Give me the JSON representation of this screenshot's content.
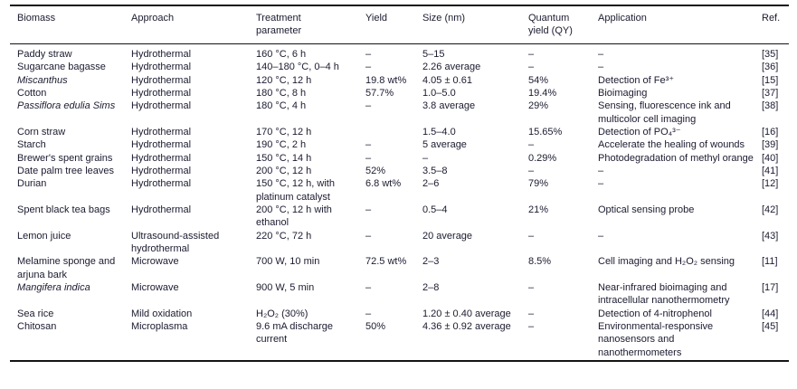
{
  "table": {
    "columns": [
      {
        "key": "biomass",
        "label": "Biomass"
      },
      {
        "key": "approach",
        "label": "Approach"
      },
      {
        "key": "treatment",
        "label": "Treatment\nparameter"
      },
      {
        "key": "yield",
        "label": "Yield"
      },
      {
        "key": "size",
        "label": "Size (nm)"
      },
      {
        "key": "qy",
        "label": "Quantum\nyield (QY)"
      },
      {
        "key": "application",
        "label": "Application"
      },
      {
        "key": "ref",
        "label": "Ref."
      }
    ],
    "rows": [
      {
        "biomass": "Paddy straw",
        "biomass_italic": false,
        "approach": "Hydrothermal",
        "treatment": "160 °C, 6 h",
        "yield": "–",
        "size": "5–15",
        "qy": "–",
        "application": "–",
        "ref": "[35]"
      },
      {
        "biomass": "Sugarcane bagasse",
        "biomass_italic": false,
        "approach": "Hydrothermal",
        "treatment": "140–180 °C, 0–4 h",
        "yield": "–",
        "size": "2.26 average",
        "qy": "–",
        "application": "–",
        "ref": "[36]"
      },
      {
        "biomass": "Miscanthus",
        "biomass_italic": true,
        "approach": "Hydrothermal",
        "treatment": "120 °C, 12 h",
        "yield": "19.8 wt%",
        "size": "4.05 ± 0.61",
        "qy": "54%",
        "application": "Detection of Fe³⁺",
        "ref": "[15]"
      },
      {
        "biomass": "Cotton",
        "biomass_italic": false,
        "approach": "Hydrothermal",
        "treatment": "180 °C, 8 h",
        "yield": "57.7%",
        "size": "1.0–5.0",
        "qy": "19.4%",
        "application": "Bioimaging",
        "ref": "[37]"
      },
      {
        "biomass": "Passiflora edulia Sims",
        "biomass_italic": true,
        "approach": "Hydrothermal",
        "treatment": "180 °C, 4 h",
        "yield": "–",
        "size": "3.8 average",
        "qy": "29%",
        "application": "Sensing, fluorescence ink and multicolor cell imaging",
        "ref": "[38]"
      },
      {
        "biomass": "Corn straw",
        "biomass_italic": false,
        "approach": "Hydrothermal",
        "treatment": "170 °C, 12 h",
        "yield": "",
        "size": "1.5–4.0",
        "qy": "15.65%",
        "application": "Detection of PO₄³⁻",
        "ref": "[16]"
      },
      {
        "biomass": "Starch",
        "biomass_italic": false,
        "approach": "Hydrothermal",
        "treatment": "190 °C, 2 h",
        "yield": "–",
        "size": "5 average",
        "qy": "–",
        "application": "Accelerate the healing of wounds",
        "ref": "[39]"
      },
      {
        "biomass": "Brewer's spent grains",
        "biomass_italic": false,
        "approach": "Hydrothermal",
        "treatment": "150 °C, 14 h",
        "yield": "–",
        "size": "–",
        "qy": "0.29%",
        "application": "Photodegradation of methyl orange",
        "ref": "[40]"
      },
      {
        "biomass": "Date palm tree leaves",
        "biomass_italic": false,
        "approach": "Hydrothermal",
        "treatment": "200 °C, 12 h",
        "yield": "52%",
        "size": "3.5–8",
        "qy": "–",
        "application": "–",
        "ref": "[41]"
      },
      {
        "biomass": "Durian",
        "biomass_italic": false,
        "approach": "Hydrothermal",
        "treatment": "150 °C, 12 h, with platinum catalyst",
        "yield": "6.8 wt%",
        "size": "2–6",
        "qy": "79%",
        "application": "–",
        "ref": "[12]"
      },
      {
        "biomass": "Spent black tea bags",
        "biomass_italic": false,
        "approach": "Hydrothermal",
        "treatment": "200 °C, 12 h with ethanol",
        "yield": "–",
        "size": "0.5–4",
        "qy": "21%",
        "application": "Optical sensing probe",
        "ref": "[42]"
      },
      {
        "biomass": "Lemon juice",
        "biomass_italic": false,
        "approach": "Ultrasound-assisted hydrothermal",
        "treatment": "220 °C, 72 h",
        "yield": "–",
        "size": "20 average",
        "qy": "–",
        "application": "–",
        "ref": "[43]"
      },
      {
        "biomass": "Melamine sponge and arjuna bark",
        "biomass_italic": false,
        "approach": "Microwave",
        "treatment": "700 W, 10 min",
        "yield": "72.5 wt%",
        "size": "2–3",
        "qy": "8.5%",
        "application": "Cell imaging and H₂O₂ sensing",
        "ref": "[11]"
      },
      {
        "biomass": "Mangifera indica",
        "biomass_italic": true,
        "approach": "Microwave",
        "treatment": "900 W, 5 min",
        "yield": "–",
        "size": "2–8",
        "qy": "–",
        "application": "Near-infrared bioimaging and intracellular nanothermometry",
        "ref": "[17]"
      },
      {
        "biomass": "Sea rice",
        "biomass_italic": false,
        "approach": "Mild oxidation",
        "treatment": "H₂O₂ (30%)",
        "yield": "–",
        "size": "1.20 ± 0.40 average",
        "qy": "–",
        "application": "Detection of 4-nitrophenol",
        "ref": "[44]"
      },
      {
        "biomass": "Chitosan",
        "biomass_italic": false,
        "approach": "Microplasma",
        "treatment": "9.6 mA discharge current",
        "yield": "50%",
        "size": "4.36 ± 0.92 average",
        "qy": "–",
        "application": "Environmental-responsive nanosensors and nanothermometers",
        "ref": "[45]"
      }
    ]
  }
}
